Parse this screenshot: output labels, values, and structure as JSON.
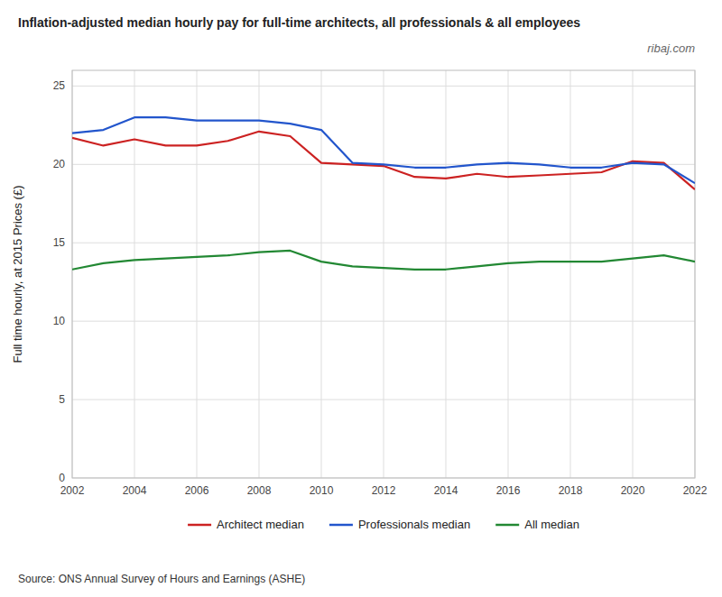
{
  "chart_data": {
    "type": "line",
    "title": "Inflation-adjusted median hourly pay for full-time architects, all professionals & all employees",
    "ylabel": "Full time hourly, at 2015 Prices (£)",
    "annotations": [
      "ribaj.com",
      "Source: ONS Annual Survey of Hours and Earnings (ASHE)"
    ],
    "x": [
      2002,
      2003,
      2004,
      2005,
      2006,
      2007,
      2008,
      2009,
      2010,
      2011,
      2012,
      2013,
      2014,
      2015,
      2016,
      2017,
      2018,
      2019,
      2020,
      2021,
      2022
    ],
    "series": [
      {
        "name": "Architect median",
        "color": "#cc2222",
        "values": [
          21.7,
          21.2,
          21.6,
          21.2,
          21.2,
          21.5,
          22.1,
          21.8,
          20.1,
          20.0,
          19.9,
          19.2,
          19.1,
          19.4,
          19.2,
          19.3,
          19.4,
          19.5,
          20.2,
          20.1,
          18.4
        ]
      },
      {
        "name": "Professionals median",
        "color": "#2255cc",
        "values": [
          22.0,
          22.2,
          23.0,
          23.0,
          22.8,
          22.8,
          22.8,
          22.6,
          22.2,
          20.1,
          20.0,
          19.8,
          19.8,
          20.0,
          20.1,
          20.0,
          19.8,
          19.8,
          20.1,
          20.0,
          18.8
        ]
      },
      {
        "name": "All median",
        "color": "#228833",
        "values": [
          13.3,
          13.7,
          13.9,
          14.0,
          14.1,
          14.2,
          14.4,
          14.5,
          13.8,
          13.5,
          13.4,
          13.3,
          13.3,
          13.5,
          13.7,
          13.8,
          13.8,
          13.8,
          14.0,
          14.2,
          13.8
        ]
      }
    ],
    "xlim": [
      2002,
      2022
    ],
    "xticks": [
      2002,
      2004,
      2006,
      2008,
      2010,
      2012,
      2014,
      2016,
      2018,
      2020,
      2022
    ],
    "ylim": [
      0,
      26
    ],
    "yticks": [
      0,
      5,
      10,
      15,
      20,
      25
    ],
    "grid": true,
    "legend": "bottom"
  }
}
